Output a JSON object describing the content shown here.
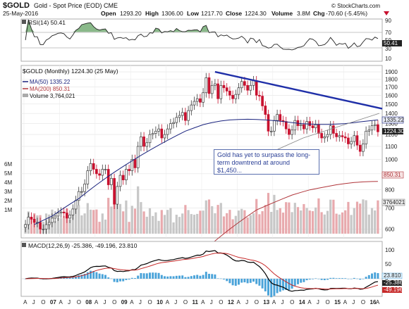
{
  "header": {
    "symbol": "$GOLD",
    "name": "Gold - Spot Price (EOD) CME",
    "date": "25-May-2016",
    "open_label": "Open",
    "open": "1293.20",
    "high_label": "High",
    "high": "1306.00",
    "low_label": "Low",
    "low": "1217.70",
    "close_label": "Close",
    "close": "1224.30",
    "volume_label": "Volume",
    "volume": "3.8M",
    "chg_label": "Chg",
    "chg": "-70.60 (-5.45%)",
    "source": "© StockCharts.com"
  },
  "rsi_panel": {
    "legend": "RSI(14) 50.41",
    "ticks": [
      "90",
      "70",
      "50",
      "30",
      "10"
    ],
    "current_badge": "50.41"
  },
  "price_panel": {
    "legend": "$GOLD (Monthly) 1224.30 (25 May)",
    "ma50": "MA(50) 1335.22",
    "ma200": "MA(200) 850.31",
    "volume": "Volume 3,764,021",
    "price_ticks": [
      "1900",
      "1800",
      "1700",
      "1600",
      "1500",
      "1400",
      "1300",
      "1200",
      "1100",
      "1000",
      "900",
      "800",
      "700",
      "600"
    ],
    "volume_ticks": [
      "6M",
      "5M",
      "4M",
      "3M",
      "2M",
      "1M"
    ],
    "badges": {
      "ma50": "1335.22",
      "close": "1224.30",
      "ma200": "850.31",
      "volume": "3764021"
    },
    "annotation": "Gold has yet to surpass the long-term downtrend at around $1,450..."
  },
  "macd_panel": {
    "legend": "MACD(12,26,9) -25.386, -49.196, 23.810",
    "ticks": [
      "100",
      "50",
      "0",
      "-50",
      "-100"
    ],
    "badges": [
      "23.810",
      "-25.386",
      "-49.196"
    ]
  },
  "x_axis": {
    "labels": [
      "A",
      "J",
      "O",
      "07",
      "A",
      "J",
      "O",
      "08",
      "A",
      "J",
      "O",
      "09",
      "A",
      "J",
      "O",
      "10",
      "A",
      "J",
      "O",
      "11",
      "A",
      "J",
      "O",
      "12",
      "A",
      "J",
      "O",
      "13",
      "A",
      "J",
      "O",
      "14",
      "A",
      "J",
      "O",
      "15",
      "A",
      "J",
      "O",
      "16",
      "A"
    ]
  },
  "colors": {
    "up": "#3a3a3a",
    "down": "#c8102e",
    "ma50": "#1a237e",
    "ma200": "#b0353a",
    "trendline": "#1f2fa8",
    "macd": "#000000",
    "signal": "#c62828",
    "histogram": "#4aa3d9",
    "rsi": "#222222",
    "rsi_fill": "#3c8a3c"
  },
  "chart_data": {
    "type": "candlestick",
    "title": "$GOLD (Monthly) 1224.30 (25 May)",
    "interval": "monthly",
    "start": "2006-04",
    "close_series": [
      620,
      655,
      645,
      630,
      630,
      600,
      600,
      620,
      630,
      650,
      660,
      675,
      680,
      675,
      650,
      665,
      695,
      740,
      790,
      790,
      835,
      920,
      970,
      930,
      900,
      890,
      930,
      930,
      830,
      870,
      720,
      820,
      890,
      860,
      930,
      920,
      1000,
      940,
      1100,
      1180,
      1100,
      1130,
      1200,
      1210,
      1230,
      1250,
      1170,
      1200,
      1250,
      1300,
      1310,
      1360,
      1380,
      1410,
      1330,
      1430,
      1490,
      1530,
      1560,
      1520,
      1630,
      1820,
      1620,
      1720,
      1740,
      1560,
      1720,
      1690,
      1650,
      1600,
      1560,
      1610,
      1690,
      1770,
      1720,
      1660,
      1720,
      1780,
      1600,
      1590,
      1480,
      1390,
      1230,
      1230,
      1330,
      1390,
      1330,
      1320,
      1250,
      1200,
      1240,
      1330,
      1280,
      1290,
      1250,
      1320,
      1280,
      1260,
      1290,
      1210,
      1170,
      1180,
      1200,
      1280,
      1210,
      1180,
      1190,
      1180,
      1170,
      1120,
      1140,
      1190,
      1110,
      1060,
      1120,
      1230,
      1240,
      1280,
      1290,
      1224
    ],
    "ma50_series": [
      null,
      620,
      640,
      660,
      690,
      720,
      750,
      790,
      830,
      870,
      910,
      950,
      990,
      1030,
      1070,
      1110,
      1150,
      1190,
      1230,
      1260,
      1290,
      1310,
      1325,
      1335,
      1340,
      1342,
      1340,
      1335,
      1328,
      1320,
      1310,
      1300,
      1295,
      1292,
      1292,
      1295,
      1300,
      1310,
      1320,
      1330,
      1335
    ],
    "ma200_series": [
      null,
      null,
      null,
      null,
      null,
      null,
      null,
      null,
      null,
      null,
      null,
      null,
      null,
      null,
      null,
      null,
      null,
      null,
      null,
      null,
      500,
      540,
      570,
      600,
      630,
      660,
      690,
      710,
      730,
      750,
      770,
      785,
      800,
      810,
      820,
      830,
      838,
      844,
      848,
      850,
      851
    ],
    "trendline": {
      "from": {
        "date": "2011-08",
        "price": 1900
      },
      "to": {
        "date": "2016-06",
        "price": 1450
      }
    },
    "macd": {
      "macd": -25.386,
      "signal": -49.196,
      "histogram": 23.81
    },
    "rsi": 50.41,
    "ma50": 1335.22,
    "ma200": 850.31,
    "volume": 3764021,
    "ylim": [
      580,
      1920
    ],
    "y_scale": "log"
  }
}
